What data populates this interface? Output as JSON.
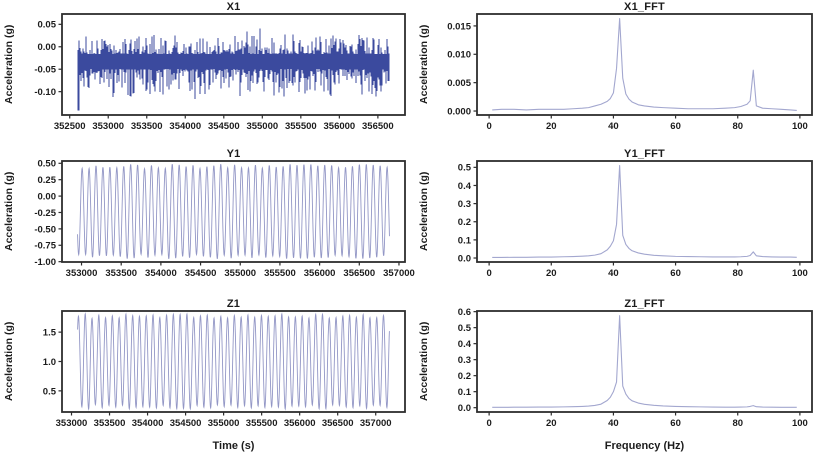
{
  "colors": {
    "time_noise_line": "#3b4a9e",
    "time_sine_line": "#9397c6",
    "fft_line": "#a3a7cf",
    "axis_frame": "#2d2d2d",
    "text": "#1c1c1c",
    "background": "#ffffff"
  },
  "chart_data": [
    {
      "type": "line",
      "signal": "noise",
      "title": "X1",
      "ylabel": "Acceleration (g)",
      "xlim": [
        352400,
        356852
      ],
      "ylim": [
        -0.152,
        0.073
      ],
      "xticks": [
        "352500",
        "353000",
        "353500",
        "354000",
        "354500",
        "355000",
        "355500",
        "356000",
        "356500"
      ],
      "yticks": [
        "0.05",
        "0.00",
        "-0.05",
        "-0.10"
      ],
      "x_range_data": [
        352600,
        356650
      ],
      "y_range_data": [
        -0.142,
        0.063
      ],
      "mean": -0.028,
      "seed": 11
    },
    {
      "type": "line",
      "signal": "fft",
      "title": "X1_FFT",
      "ylabel": "Acceleration (g)",
      "xlim": [
        -3.9,
        103.9
      ],
      "ylim": [
        -0.0007,
        0.0171
      ],
      "xticks": [
        "0",
        "20",
        "40",
        "60",
        "80",
        "100"
      ],
      "yticks": [
        "0.000",
        "0.005",
        "0.010",
        "0.015"
      ],
      "peak_frequency_hz": 42,
      "peak_amplitude": 0.0163,
      "secondary_peak_hz": 85,
      "secondary_peak_amplitude": 0.0072,
      "points": [
        [
          1,
          0.0002
        ],
        [
          4,
          0.0003
        ],
        [
          8,
          0.0003
        ],
        [
          12,
          0.0002
        ],
        [
          16,
          0.0003
        ],
        [
          20,
          0.0003
        ],
        [
          24,
          0.0003
        ],
        [
          27,
          0.0004
        ],
        [
          30,
          0.0005
        ],
        [
          32,
          0.0006
        ],
        [
          34,
          0.0009
        ],
        [
          36,
          0.0012
        ],
        [
          38,
          0.0017
        ],
        [
          39,
          0.0022
        ],
        [
          40,
          0.0032
        ],
        [
          41,
          0.0075
        ],
        [
          42,
          0.0163
        ],
        [
          43,
          0.0058
        ],
        [
          44,
          0.003
        ],
        [
          45,
          0.0021
        ],
        [
          46,
          0.0016
        ],
        [
          48,
          0.0011
        ],
        [
          50,
          0.0009
        ],
        [
          53,
          0.0007
        ],
        [
          56,
          0.0006
        ],
        [
          60,
          0.0005
        ],
        [
          64,
          0.0004
        ],
        [
          68,
          0.0004
        ],
        [
          72,
          0.0004
        ],
        [
          76,
          0.0005
        ],
        [
          79,
          0.0006
        ],
        [
          81,
          0.0008
        ],
        [
          83,
          0.0012
        ],
        [
          84,
          0.0018
        ],
        [
          85,
          0.0072
        ],
        [
          86,
          0.0009
        ],
        [
          88,
          0.0005
        ],
        [
          91,
          0.0004
        ],
        [
          94,
          0.0003
        ],
        [
          97,
          0.0002
        ],
        [
          99,
          0.0001
        ]
      ]
    },
    {
      "type": "line",
      "signal": "sine",
      "title": "Y1",
      "ylabel": "Acceleration (g)",
      "xlim": [
        352754,
        357076
      ],
      "ylim": [
        -1.005,
        0.535
      ],
      "xticks": [
        "353000",
        "353500",
        "354000",
        "354500",
        "355000",
        "355500",
        "356000",
        "356500",
        "357000"
      ],
      "yticks": [
        "0.50",
        "0.25",
        "0.00",
        "-0.25",
        "-0.50",
        "-0.75",
        "-1.00"
      ],
      "x_range_data": [
        352950,
        356880
      ],
      "y_range_data": [
        -0.93,
        0.46
      ],
      "center": -0.235,
      "amplitude": 0.695,
      "cycles": 45,
      "phase": 3.695,
      "seed": 23
    },
    {
      "type": "line",
      "signal": "fft",
      "title": "Y1_FFT",
      "ylabel": "Acceleration (g)",
      "xlim": [
        -3.9,
        103.9
      ],
      "ylim": [
        -0.022,
        0.535
      ],
      "xticks": [
        "0",
        "20",
        "40",
        "60",
        "80",
        "100"
      ],
      "yticks": [
        "0.0",
        "0.1",
        "0.2",
        "0.3",
        "0.4",
        "0.5"
      ],
      "peak_frequency_hz": 42,
      "peak_amplitude": 0.51,
      "secondary_peak_hz": 85,
      "secondary_peak_amplitude": 0.034,
      "points": [
        [
          1,
          0.003
        ],
        [
          4,
          0.003
        ],
        [
          8,
          0.004
        ],
        [
          12,
          0.004
        ],
        [
          16,
          0.005
        ],
        [
          20,
          0.005
        ],
        [
          24,
          0.007
        ],
        [
          27,
          0.008
        ],
        [
          30,
          0.01
        ],
        [
          32,
          0.012
        ],
        [
          34,
          0.016
        ],
        [
          36,
          0.024
        ],
        [
          38,
          0.045
        ],
        [
          39,
          0.065
        ],
        [
          40,
          0.095
        ],
        [
          41,
          0.185
        ],
        [
          42,
          0.51
        ],
        [
          43,
          0.125
        ],
        [
          44,
          0.075
        ],
        [
          45,
          0.053
        ],
        [
          46,
          0.04
        ],
        [
          48,
          0.028
        ],
        [
          50,
          0.021
        ],
        [
          53,
          0.015
        ],
        [
          56,
          0.012
        ],
        [
          60,
          0.009
        ],
        [
          64,
          0.008
        ],
        [
          68,
          0.007
        ],
        [
          72,
          0.006
        ],
        [
          76,
          0.006
        ],
        [
          79,
          0.006
        ],
        [
          81,
          0.007
        ],
        [
          83,
          0.009
        ],
        [
          84,
          0.014
        ],
        [
          85,
          0.034
        ],
        [
          86,
          0.012
        ],
        [
          88,
          0.008
        ],
        [
          91,
          0.006
        ],
        [
          94,
          0.005
        ],
        [
          97,
          0.005
        ],
        [
          99,
          0.004
        ]
      ]
    },
    {
      "type": "line",
      "signal": "sine",
      "title": "Z1",
      "ylabel": "Acceleration (g)",
      "xlabel": "Time (s)",
      "xlim": [
        352875,
        357385
      ],
      "ylim": [
        0.14,
        1.86
      ],
      "xticks": [
        "353000",
        "353500",
        "354000",
        "354500",
        "355000",
        "355500",
        "356000",
        "356500",
        "357000"
      ],
      "yticks": [
        "1.5",
        "1.0",
        "0.5"
      ],
      "x_range_data": [
        353080,
        357180
      ],
      "y_range_data": [
        0.22,
        1.78
      ],
      "center": 1.0,
      "amplitude": 0.78,
      "cycles": 46,
      "phase": 0.78,
      "seed": 37
    },
    {
      "type": "line",
      "signal": "fft",
      "title": "Z1_FFT",
      "ylabel": "Acceleration (g)",
      "xlabel": "Frequency (Hz)",
      "xlim": [
        -3.9,
        103.9
      ],
      "ylim": [
        -0.027,
        0.604
      ],
      "xticks": [
        "0",
        "20",
        "40",
        "60",
        "80",
        "100"
      ],
      "yticks": [
        "0.0",
        "0.1",
        "0.2",
        "0.3",
        "0.4",
        "0.5",
        "0.6"
      ],
      "peak_frequency_hz": 42,
      "peak_amplitude": 0.575,
      "secondary_peak_hz": 85,
      "secondary_peak_amplitude": 0.013,
      "points": [
        [
          1,
          0.002
        ],
        [
          4,
          0.002
        ],
        [
          8,
          0.003
        ],
        [
          12,
          0.003
        ],
        [
          16,
          0.004
        ],
        [
          20,
          0.004
        ],
        [
          24,
          0.005
        ],
        [
          27,
          0.006
        ],
        [
          30,
          0.008
        ],
        [
          32,
          0.01
        ],
        [
          34,
          0.014
        ],
        [
          36,
          0.022
        ],
        [
          38,
          0.045
        ],
        [
          39,
          0.065
        ],
        [
          40,
          0.1
        ],
        [
          41,
          0.16
        ],
        [
          42,
          0.575
        ],
        [
          43,
          0.135
        ],
        [
          44,
          0.085
        ],
        [
          45,
          0.058
        ],
        [
          46,
          0.043
        ],
        [
          48,
          0.029
        ],
        [
          50,
          0.021
        ],
        [
          53,
          0.015
        ],
        [
          56,
          0.011
        ],
        [
          60,
          0.008
        ],
        [
          64,
          0.006
        ],
        [
          68,
          0.005
        ],
        [
          72,
          0.004
        ],
        [
          76,
          0.003
        ],
        [
          79,
          0.003
        ],
        [
          81,
          0.004
        ],
        [
          83,
          0.005
        ],
        [
          84,
          0.008
        ],
        [
          85,
          0.013
        ],
        [
          86,
          0.006
        ],
        [
          88,
          0.004
        ],
        [
          91,
          0.003
        ],
        [
          94,
          0.002
        ],
        [
          97,
          0.002
        ],
        [
          99,
          0.002
        ]
      ]
    }
  ]
}
